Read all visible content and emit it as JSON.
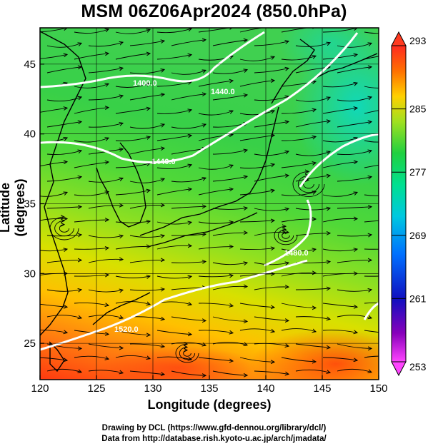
{
  "title": "MSM 06Z06Apr2024 (850.0hPa)",
  "xlabel": "Longitude (degrees)",
  "ylabel": "Latitude  (degrees)",
  "credits": {
    "line1": "Drawing by DCL (https://www.gfd-dennou.org/library/dcl/)",
    "line2": "Data from http://database.rish.kyoto-u.ac.jp/arch/jmadata/"
  },
  "map": {
    "lon_range": [
      120,
      150
    ],
    "lat_range": [
      22.4,
      47.6
    ],
    "lon_ticks": [
      "120",
      "125",
      "130",
      "135",
      "140",
      "145",
      "150"
    ],
    "lat_ticks": [
      "25",
      "30",
      "35",
      "40",
      "45"
    ],
    "grid": true,
    "contour_labels": [
      "1400.0",
      "1440.0",
      "1440.0",
      "1480.0",
      "1520.0"
    ],
    "features": [
      "streamlines",
      "temperature shading",
      "geopotential height contours (white)",
      "coastlines"
    ]
  },
  "colorbar": {
    "ticks": [
      "293",
      "285",
      "277",
      "269",
      "261",
      "253"
    ],
    "range": [
      253,
      293
    ],
    "colors": [
      "#ff44ff",
      "#7700aa",
      "#1010c0",
      "#0060ff",
      "#00b8e8",
      "#00e0a8",
      "#20d050",
      "#80e020",
      "#e0e000",
      "#ffa000",
      "#ff5000",
      "#ff2020"
    ]
  }
}
